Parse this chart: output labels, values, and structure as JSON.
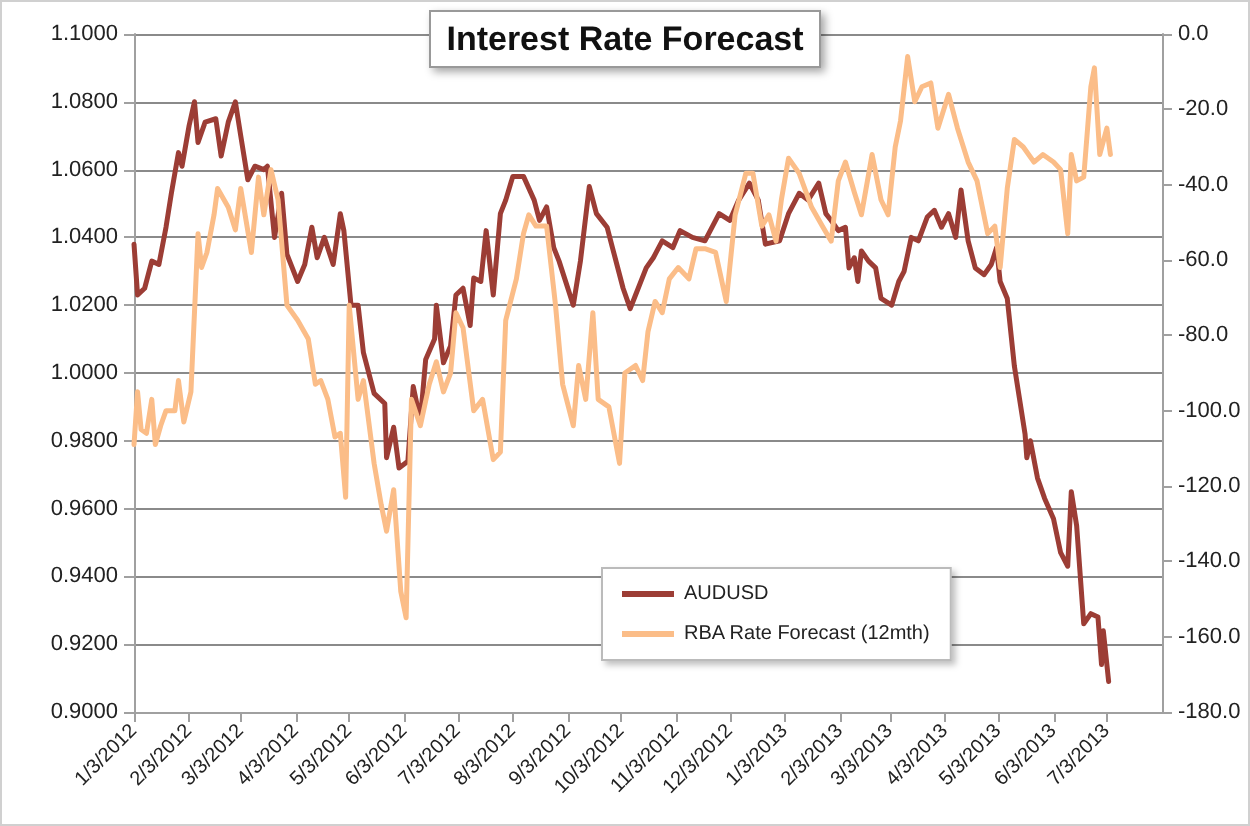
{
  "chart_data": {
    "type": "line",
    "title": "Interest Rate Forecast",
    "xlim": [
      "2012-01-03",
      "2013-08-03"
    ],
    "xticks": [
      {
        "value": "2012-01-03",
        "label": "1/3/2012"
      },
      {
        "value": "2012-02-03",
        "label": "2/3/2012"
      },
      {
        "value": "2012-03-03",
        "label": "3/3/2012"
      },
      {
        "value": "2012-04-03",
        "label": "4/3/2012"
      },
      {
        "value": "2012-05-03",
        "label": "5/3/2012"
      },
      {
        "value": "2012-06-03",
        "label": "6/3/2012"
      },
      {
        "value": "2012-07-03",
        "label": "7/3/2012"
      },
      {
        "value": "2012-08-03",
        "label": "8/3/2012"
      },
      {
        "value": "2012-09-03",
        "label": "9/3/2012"
      },
      {
        "value": "2012-10-03",
        "label": "10/3/2012"
      },
      {
        "value": "2012-11-03",
        "label": "11/3/2012"
      },
      {
        "value": "2012-12-03",
        "label": "12/3/2012"
      },
      {
        "value": "2013-01-03",
        "label": "1/3/2013"
      },
      {
        "value": "2013-02-03",
        "label": "2/3/2013"
      },
      {
        "value": "2013-03-03",
        "label": "3/3/2013"
      },
      {
        "value": "2013-04-03",
        "label": "4/3/2013"
      },
      {
        "value": "2013-05-03",
        "label": "5/3/2013"
      },
      {
        "value": "2013-06-03",
        "label": "6/3/2013"
      },
      {
        "value": "2013-07-03",
        "label": "7/3/2013"
      }
    ],
    "ylim": [
      0.9,
      1.1
    ],
    "yticks": [
      {
        "value": 0.9,
        "label": "0.9000"
      },
      {
        "value": 0.92,
        "label": "0.9200"
      },
      {
        "value": 0.94,
        "label": "0.9400"
      },
      {
        "value": 0.96,
        "label": "0.9600"
      },
      {
        "value": 0.98,
        "label": "0.9800"
      },
      {
        "value": 1.0,
        "label": "1.0000"
      },
      {
        "value": 1.02,
        "label": "1.0200"
      },
      {
        "value": 1.04,
        "label": "1.0400"
      },
      {
        "value": 1.06,
        "label": "1.0600"
      },
      {
        "value": 1.08,
        "label": "1.0800"
      },
      {
        "value": 1.1,
        "label": "1.1000"
      }
    ],
    "y2lim": [
      -180,
      0
    ],
    "y2ticks": [
      {
        "value": -180,
        "label": "-180.0"
      },
      {
        "value": -160,
        "label": "-160.0"
      },
      {
        "value": -140,
        "label": "-140.0"
      },
      {
        "value": -120,
        "label": "-120.0"
      },
      {
        "value": -100,
        "label": "-100.0"
      },
      {
        "value": -80,
        "label": "-80.0"
      },
      {
        "value": -60,
        "label": "-60.0"
      },
      {
        "value": -40,
        "label": "-40.0"
      },
      {
        "value": -20,
        "label": "-20.0"
      },
      {
        "value": 0,
        "label": "0.0"
      }
    ],
    "grid": "y",
    "legend": "bottom",
    "series": [
      {
        "name": "AUDUSD",
        "color": "#9c3d35",
        "x": [
          "2012-01-03",
          "2012-01-05",
          "2012-01-09",
          "2012-01-13",
          "2012-01-17",
          "2012-01-21",
          "2012-01-24",
          "2012-01-28",
          "2012-01-30",
          "2012-02-03",
          "2012-02-06",
          "2012-02-08",
          "2012-02-12",
          "2012-02-18",
          "2012-02-21",
          "2012-02-25",
          "2012-02-29",
          "2012-03-03",
          "2012-03-07",
          "2012-03-11",
          "2012-03-16",
          "2012-03-18",
          "2012-03-22",
          "2012-03-26",
          "2012-03-29",
          "2012-04-04",
          "2012-04-08",
          "2012-04-12",
          "2012-04-15",
          "2012-04-19",
          "2012-04-24",
          "2012-04-28",
          "2012-04-30",
          "2012-05-04",
          "2012-05-08",
          "2012-05-11",
          "2012-05-17",
          "2012-05-23",
          "2012-05-24",
          "2012-05-28",
          "2012-05-31",
          "2012-06-05",
          "2012-06-08",
          "2012-06-12",
          "2012-06-15",
          "2012-06-20",
          "2012-06-21",
          "2012-06-25",
          "2012-06-29",
          "2012-07-02",
          "2012-07-06",
          "2012-07-10",
          "2012-07-12",
          "2012-07-16",
          "2012-07-19",
          "2012-07-23",
          "2012-07-27",
          "2012-07-30",
          "2012-08-03",
          "2012-08-09",
          "2012-08-15",
          "2012-08-18",
          "2012-08-22",
          "2012-08-26",
          "2012-08-29",
          "2012-09-06",
          "2012-09-10",
          "2012-09-15",
          "2012-09-19",
          "2012-09-25",
          "2012-09-28",
          "2012-10-04",
          "2012-10-08",
          "2012-10-11",
          "2012-10-17",
          "2012-10-21",
          "2012-10-26",
          "2012-11-01",
          "2012-11-05",
          "2012-11-12",
          "2012-11-19",
          "2012-11-27",
          "2012-12-03",
          "2012-12-08",
          "2012-12-14",
          "2012-12-19",
          "2012-12-23",
          "2012-12-31",
          "2013-01-05",
          "2013-01-11",
          "2013-01-16",
          "2013-01-22",
          "2013-01-26",
          "2013-01-29",
          "2013-02-02",
          "2013-02-06",
          "2013-02-08",
          "2013-02-11",
          "2013-02-13",
          "2013-02-15",
          "2013-02-19",
          "2013-02-23",
          "2013-02-26",
          "2013-03-04",
          "2013-03-08",
          "2013-03-11",
          "2013-03-15",
          "2013-03-19",
          "2013-03-24",
          "2013-03-28",
          "2013-04-01",
          "2013-04-05",
          "2013-04-09",
          "2013-04-12",
          "2013-04-16",
          "2013-04-20",
          "2013-04-25",
          "2013-04-29",
          "2013-05-02",
          "2013-05-04",
          "2013-05-08",
          "2013-05-12",
          "2013-05-18",
          "2013-05-19",
          "2013-05-21",
          "2013-05-25",
          "2013-05-29",
          "2013-06-03",
          "2013-06-07",
          "2013-06-11",
          "2013-06-13",
          "2013-06-16",
          "2013-06-20",
          "2013-06-24",
          "2013-06-28",
          "2013-06-30",
          "2013-07-01",
          "2013-07-04"
        ],
        "values": [
          1.038,
          1.023,
          1.025,
          1.033,
          1.032,
          1.043,
          1.053,
          1.065,
          1.061,
          1.073,
          1.08,
          1.068,
          1.074,
          1.075,
          1.064,
          1.074,
          1.08,
          1.07,
          1.057,
          1.061,
          1.06,
          1.061,
          1.04,
          1.053,
          1.035,
          1.027,
          1.032,
          1.043,
          1.034,
          1.04,
          1.032,
          1.047,
          1.042,
          1.02,
          1.02,
          1.006,
          0.994,
          0.991,
          0.975,
          0.984,
          0.972,
          0.974,
          0.996,
          0.986,
          1.004,
          1.01,
          1.02,
          1.003,
          1.008,
          1.023,
          1.025,
          1.014,
          1.028,
          1.027,
          1.042,
          1.023,
          1.047,
          1.051,
          1.058,
          1.058,
          1.051,
          1.045,
          1.049,
          1.037,
          1.033,
          1.02,
          1.033,
          1.055,
          1.047,
          1.043,
          1.037,
          1.025,
          1.019,
          1.023,
          1.031,
          1.034,
          1.039,
          1.037,
          1.042,
          1.04,
          1.039,
          1.047,
          1.045,
          1.051,
          1.056,
          1.051,
          1.038,
          1.039,
          1.047,
          1.053,
          1.051,
          1.056,
          1.047,
          1.045,
          1.042,
          1.043,
          1.031,
          1.034,
          1.027,
          1.036,
          1.033,
          1.031,
          1.022,
          1.02,
          1.027,
          1.03,
          1.04,
          1.039,
          1.046,
          1.048,
          1.043,
          1.047,
          1.04,
          1.054,
          1.039,
          1.031,
          1.029,
          1.032,
          1.037,
          1.027,
          1.022,
          1.002,
          0.982,
          0.975,
          0.98,
          0.969,
          0.963,
          0.957,
          0.947,
          0.943,
          0.965,
          0.955,
          0.926,
          0.929,
          0.928,
          0.914,
          0.924,
          0.909
        ]
      },
      {
        "name": "RBA Rate Forecast (12mth)",
        "color": "#fbbd88",
        "axis": "y2",
        "x": [
          "2012-01-03",
          "2012-01-05",
          "2012-01-07",
          "2012-01-10",
          "2012-01-13",
          "2012-01-15",
          "2012-01-18",
          "2012-01-21",
          "2012-01-26",
          "2012-01-28",
          "2012-01-31",
          "2012-02-04",
          "2012-02-08",
          "2012-02-10",
          "2012-02-13",
          "2012-02-17",
          "2012-02-19",
          "2012-02-25",
          "2012-02-29",
          "2012-03-03",
          "2012-03-09",
          "2012-03-13",
          "2012-03-16",
          "2012-03-20",
          "2012-03-24",
          "2012-03-29",
          "2012-04-04",
          "2012-04-10",
          "2012-04-14",
          "2012-04-17",
          "2012-04-21",
          "2012-04-25",
          "2012-04-28",
          "2012-05-01",
          "2012-05-03",
          "2012-05-08",
          "2012-05-11",
          "2012-05-17",
          "2012-05-21",
          "2012-05-24",
          "2012-05-28",
          "2012-06-01",
          "2012-06-04",
          "2012-06-07",
          "2012-06-12",
          "2012-06-17",
          "2012-06-21",
          "2012-06-25",
          "2012-06-29",
          "2012-07-02",
          "2012-07-06",
          "2012-07-12",
          "2012-07-17",
          "2012-07-23",
          "2012-07-27",
          "2012-07-30",
          "2012-08-05",
          "2012-08-09",
          "2012-08-12",
          "2012-08-16",
          "2012-08-22",
          "2012-08-27",
          "2012-08-31",
          "2012-09-06",
          "2012-09-09",
          "2012-09-13",
          "2012-09-17",
          "2012-09-20",
          "2012-09-26",
          "2012-10-02",
          "2012-10-05",
          "2012-10-11",
          "2012-10-15",
          "2012-10-18",
          "2012-10-22",
          "2012-10-26",
          "2012-10-30",
          "2012-11-04",
          "2012-11-10",
          "2012-11-14",
          "2012-11-19",
          "2012-11-25",
          "2012-12-01",
          "2012-12-06",
          "2012-12-12",
          "2012-12-16",
          "2012-12-21",
          "2012-12-25",
          "2012-12-29",
          "2013-01-01",
          "2013-01-05",
          "2013-01-11",
          "2013-01-18",
          "2013-01-24",
          "2013-01-29",
          "2013-02-02",
          "2013-02-06",
          "2013-02-11",
          "2013-02-15",
          "2013-02-21",
          "2013-02-26",
          "2013-03-02",
          "2013-03-06",
          "2013-03-09",
          "2013-03-13",
          "2013-03-17",
          "2013-03-21",
          "2013-03-26",
          "2013-03-30",
          "2013-04-05",
          "2013-04-10",
          "2013-04-16",
          "2013-04-21",
          "2013-04-27",
          "2013-05-01",
          "2013-05-04",
          "2013-05-08",
          "2013-05-12",
          "2013-05-17",
          "2013-05-23",
          "2013-05-28",
          "2013-06-03",
          "2013-06-07",
          "2013-06-11",
          "2013-06-13",
          "2013-06-16",
          "2013-06-20",
          "2013-06-24",
          "2013-06-26",
          "2013-06-29",
          "2013-07-03",
          "2013-07-05"
        ],
        "values": [
          -109,
          -95,
          -105,
          -106,
          -97,
          -109,
          -104,
          -100,
          -100,
          -92,
          -103,
          -95,
          -53,
          -62,
          -58,
          -48,
          -41,
          -46,
          -52,
          -41,
          -58,
          -38,
          -48,
          -36,
          -44,
          -72,
          -76,
          -81,
          -93,
          -92,
          -97,
          -107,
          -106,
          -123,
          -72,
          -97,
          -92,
          -114,
          -125,
          -132,
          -121,
          -148,
          -155,
          -97,
          -104,
          -93,
          -87,
          -95,
          -90,
          -74,
          -78,
          -100,
          -97,
          -113,
          -111,
          -76,
          -65,
          -53,
          -48,
          -51,
          -51,
          -72,
          -93,
          -104,
          -88,
          -97,
          -74,
          -97,
          -99,
          -114,
          -90,
          -88,
          -92,
          -79,
          -71,
          -74,
          -65,
          -62,
          -65,
          -57,
          -57,
          -58,
          -71,
          -48,
          -37,
          -37,
          -51,
          -48,
          -55,
          -44,
          -33,
          -37,
          -46,
          -51,
          -55,
          -39,
          -34,
          -42,
          -48,
          -32,
          -44,
          -48,
          -30,
          -23,
          -6,
          -18,
          -14,
          -13,
          -25,
          -16,
          -25,
          -34,
          -39,
          -53,
          -51,
          -62,
          -41,
          -28,
          -30,
          -34,
          -32,
          -34,
          -36,
          -53,
          -32,
          -39,
          -38,
          -14,
          -9,
          -32,
          -25,
          -32
        ]
      }
    ]
  }
}
